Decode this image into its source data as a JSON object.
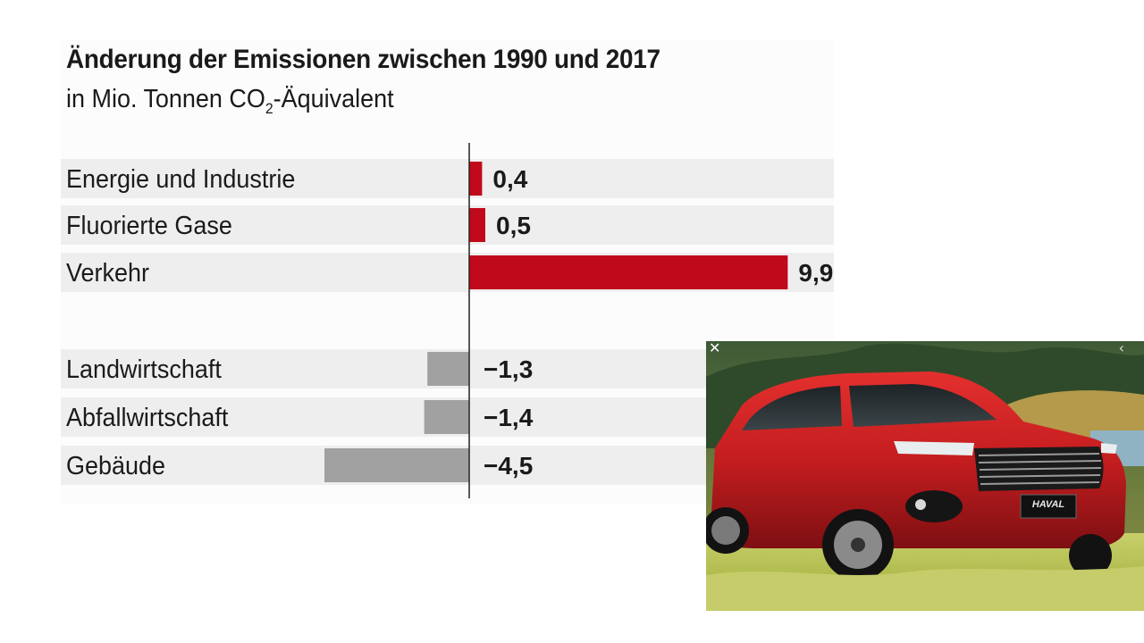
{
  "chart_data": {
    "type": "bar",
    "orientation": "horizontal",
    "title": "Änderung der Emissionen zwischen 1990 und 2017",
    "subtitle": {
      "before": "in Mio. Tonnen CO",
      "sub": "2",
      "after": "-Äquivalent"
    },
    "categories": [
      "Energie und Industrie",
      "Fluorierte Gase",
      "Verkehr",
      "Landwirtschaft",
      "Abfallwirtschaft",
      "Gebäude"
    ],
    "values": [
      0.4,
      0.5,
      9.9,
      -1.3,
      -1.4,
      -4.5
    ],
    "value_labels": [
      "0,4",
      "0,5",
      "9,9",
      "−1,3",
      "−1,4",
      "−4,5"
    ],
    "colors": {
      "positive": "#c1091c",
      "negative": "#a1a1a1",
      "row_band": "#efeeee",
      "axis": "#222222"
    },
    "grid": false,
    "legend": "none"
  },
  "photo": {
    "badge": "HAVAL",
    "icons": [
      "close-icon",
      "chevron-left-icon"
    ]
  }
}
